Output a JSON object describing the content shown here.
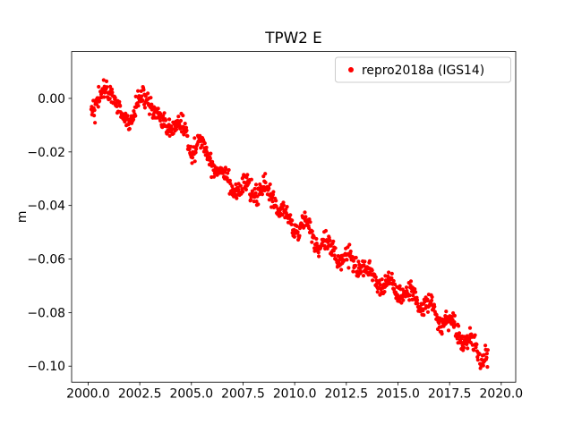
{
  "chart_data": {
    "type": "scatter",
    "title": "TPW2 E",
    "xlabel": "",
    "ylabel": "m",
    "grid": false,
    "background_color": "#ffffff",
    "spine_color": "#000000",
    "xlim": [
      1999.2,
      2020.7
    ],
    "ylim": [
      -0.106,
      0.0175
    ],
    "x_ticks": [
      {
        "value": 2000.0,
        "label": "2000.0"
      },
      {
        "value": 2002.5,
        "label": "2002.5"
      },
      {
        "value": 2005.0,
        "label": "2005.0"
      },
      {
        "value": 2007.5,
        "label": "2007.5"
      },
      {
        "value": 2010.0,
        "label": "2010.0"
      },
      {
        "value": 2012.5,
        "label": "2012.5"
      },
      {
        "value": 2015.0,
        "label": "2015.0"
      },
      {
        "value": 2017.5,
        "label": "2017.5"
      },
      {
        "value": 2020.0,
        "label": "2020.0"
      }
    ],
    "y_ticks": [
      {
        "value": 0.0,
        "label": "0.00"
      },
      {
        "value": -0.02,
        "label": "−0.02"
      },
      {
        "value": -0.04,
        "label": "−0.04"
      },
      {
        "value": -0.06,
        "label": "−0.06"
      },
      {
        "value": -0.08,
        "label": "−0.08"
      },
      {
        "value": -0.1,
        "label": "−0.10"
      }
    ],
    "legend": {
      "position": "upper right",
      "entries": [
        {
          "label": "repro2018a (IGS14)",
          "color": "#ff0000",
          "marker": "dot"
        }
      ]
    },
    "series": [
      {
        "name": "repro2018a (IGS14)",
        "color": "#ff0000",
        "marker": ".",
        "x_start": 2000.15,
        "x_end": 2019.35,
        "sample_interval_years": 0.02,
        "trend_anchors": {
          "x": [
            2000.15,
            2000.4,
            2000.7,
            2000.95,
            2001.15,
            2001.45,
            2001.8,
            2002.1,
            2002.45,
            2002.75,
            2003.0,
            2003.25,
            2003.6,
            2003.95,
            2004.3,
            2004.65,
            2005.0,
            2005.35,
            2005.75,
            2006.15,
            2006.55,
            2006.95,
            2007.35,
            2007.75,
            2008.15,
            2008.55,
            2008.95,
            2009.3,
            2009.65,
            2010.0,
            2010.4,
            2010.8,
            2011.2,
            2011.6,
            2012.0,
            2012.4,
            2012.8,
            2013.2,
            2013.6,
            2014.0,
            2014.4,
            2014.8,
            2015.2,
            2015.6,
            2016.0,
            2016.4,
            2016.8,
            2017.2,
            2017.6,
            2018.0,
            2018.4,
            2018.8,
            2019.1,
            2019.35
          ],
          "y": [
            0.0,
            -0.004,
            0.001,
            0.004,
            0.005,
            -0.006,
            -0.009,
            -0.006,
            -0.001,
            -0.002,
            0.0,
            -0.004,
            -0.012,
            -0.01,
            -0.009,
            -0.013,
            -0.018,
            -0.016,
            -0.022,
            -0.024,
            -0.029,
            -0.032,
            -0.034,
            -0.034,
            -0.035,
            -0.034,
            -0.037,
            -0.041,
            -0.046,
            -0.048,
            -0.047,
            -0.051,
            -0.054,
            -0.056,
            -0.057,
            -0.06,
            -0.061,
            -0.063,
            -0.066,
            -0.068,
            -0.07,
            -0.071,
            -0.073,
            -0.074,
            -0.076,
            -0.077,
            -0.08,
            -0.083,
            -0.085,
            -0.088,
            -0.091,
            -0.094,
            -0.096,
            -0.095
          ]
        },
        "seasonal_amplitude": 0.0025,
        "seasonal_period_years": 1.0,
        "seasonal_phase": 0.35,
        "noise_std": 0.0018
      }
    ]
  }
}
